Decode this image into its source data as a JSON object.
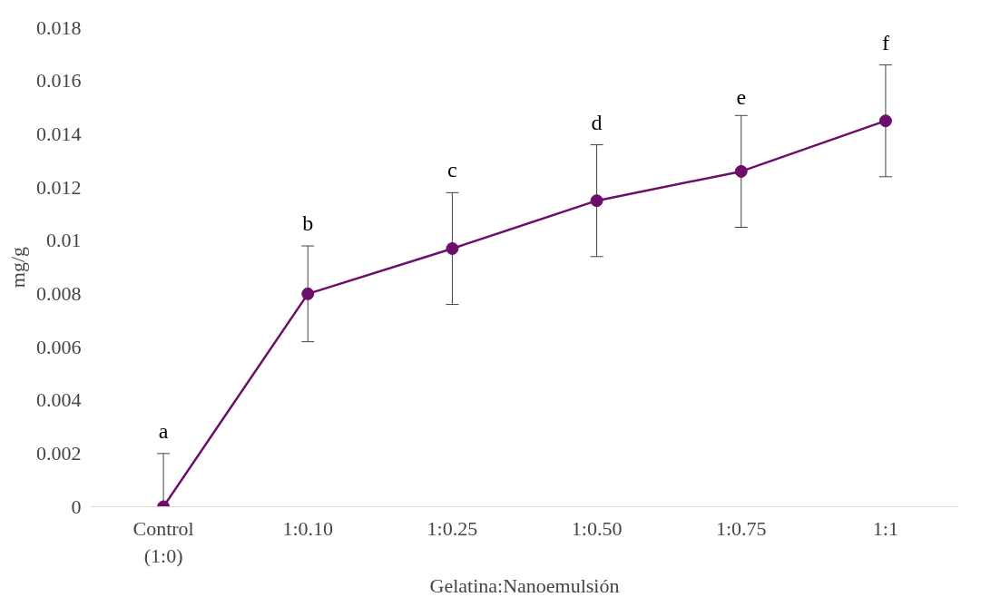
{
  "chart_data": {
    "type": "line",
    "xlabel": "Gelatina:Nanoemulsión",
    "ylabel": "mg/g",
    "categories": [
      "Control\n(1:0)",
      "1:0.10",
      "1:0.25",
      "1:0.50",
      "1:0.75",
      "1:1"
    ],
    "series": [
      {
        "color": "#6b0f6b",
        "values": [
          0,
          0.008,
          0.0097,
          0.0115,
          0.0126,
          0.0145
        ],
        "errors": [
          [
            0,
            0.002
          ],
          0.0018,
          0.0021,
          0.0021,
          0.0021,
          0.0021
        ]
      }
    ],
    "ylim": [
      0,
      0.018
    ],
    "yticks": [
      0,
      0.002,
      0.004,
      0.006,
      0.008,
      0.01,
      0.012,
      0.014,
      0.016,
      0.018
    ],
    "grid": false,
    "marker": "circle",
    "line_style": "solid",
    "annotations": [
      "a",
      "b",
      "c",
      "d",
      "e",
      "f"
    ]
  }
}
